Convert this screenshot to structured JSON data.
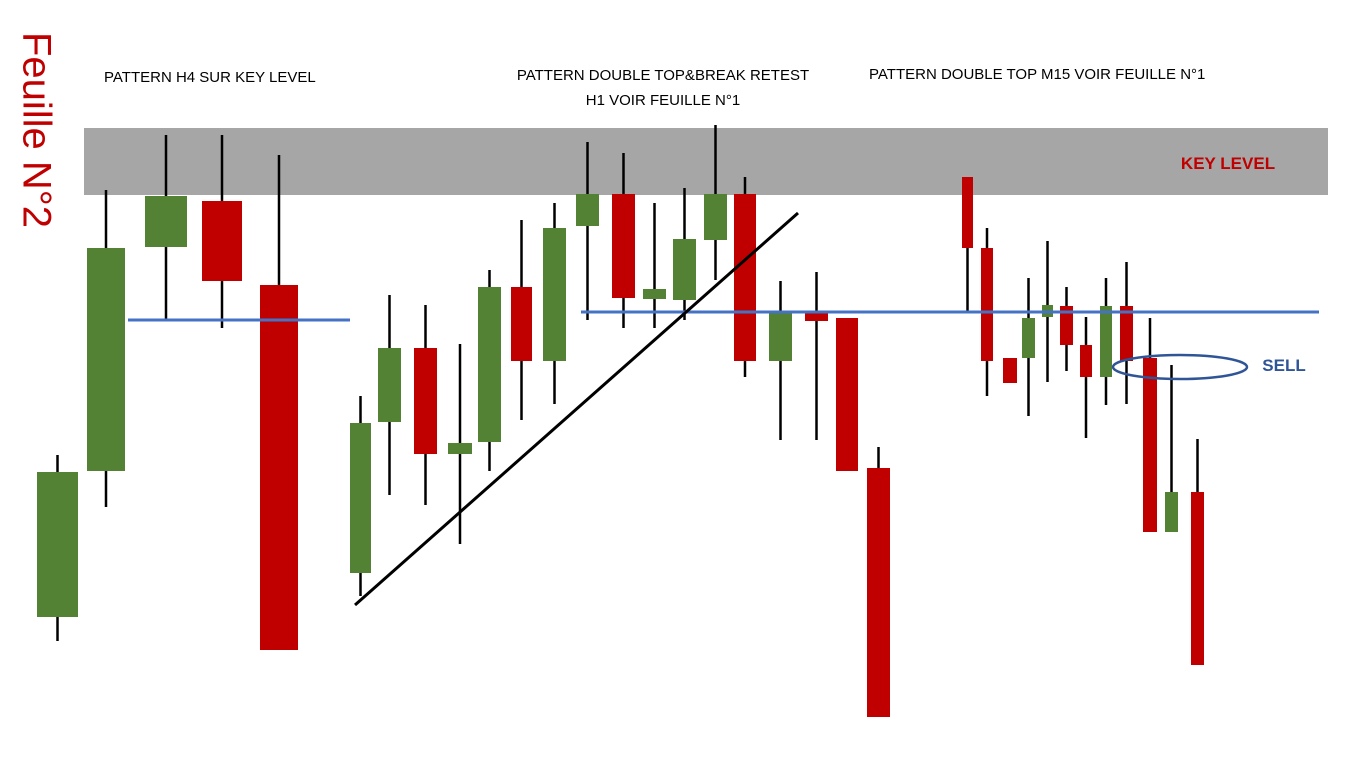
{
  "sheet_title": "Feuille N°2",
  "annotations": {
    "pattern_h4": "PATTERN H4 SUR KEY LEVEL",
    "pattern_h1": [
      "PATTERN DOUBLE TOP&BREAK RETEST",
      "H1 VOIR FEUILLE N°1"
    ],
    "pattern_m15": "PATTERN DOUBLE TOP M15 VOIR FEUILLE N°1",
    "key_level": "KEY LEVEL",
    "sell": "SELL"
  }
}
